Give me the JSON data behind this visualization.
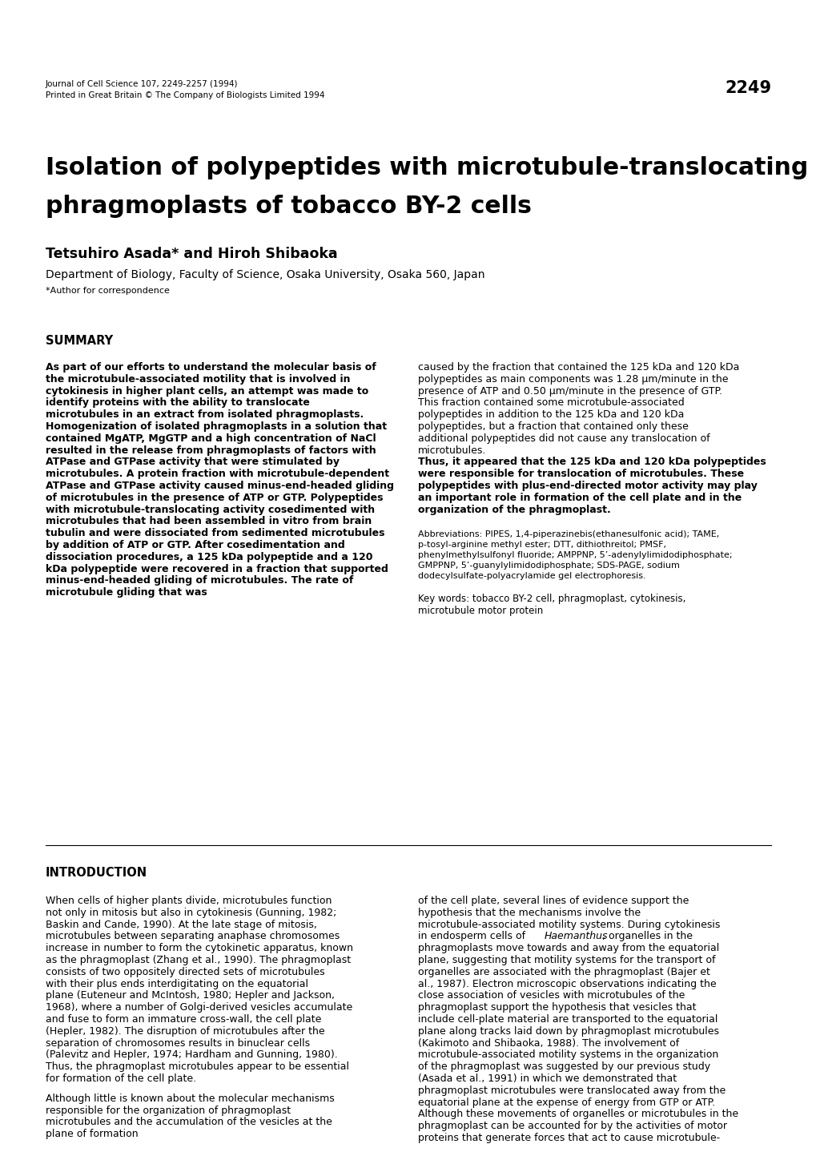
{
  "background_color": "#ffffff",
  "page_number": "2249",
  "journal_line1": "Journal of Cell Science 107, 2249-2257 (1994)",
  "journal_line2": "Printed in Great Britain © The Company of Biologists Limited 1994",
  "title_line1": "Isolation of polypeptides with microtubule-translocating activity from",
  "title_line2": "phragmoplasts of tobacco BY-2 cells",
  "authors": "Tetsuhiro Asada* and Hiroh Shibaoka",
  "affiliation": "Department of Biology, Faculty of Science, Osaka University, Osaka 560, Japan",
  "correspondence": "*Author for correspondence",
  "section_summary": "SUMMARY",
  "summary_left_all": "As part of our efforts to understand the molecular basis of the microtubule-associated motility that is involved in cytokinesis in higher plant cells, an attempt was made to identify proteins with the ability to translocate microtubules in an extract from isolated phragmoplasts. Homogenization of isolated phragmoplasts in a solution that contained MgATP, MgGTP and a high concentration of NaCl resulted in the release from phragmoplasts of factors with ATPase and GTPase activity that were stimulated by microtubules. A protein fraction with microtubule-dependent ATPase and GTPase activity caused minus-end-headed gliding of microtubules in the presence of ATP or GTP. Polypeptides with microtubule-translocating activity cosedimented with microtubules that had been assembled in vitro from brain tubulin and were dissociated from sedimented microtubules by addition of ATP or GTP. After cosedimentation and dissociation procedures, a 125 kDa polypeptide and a 120 kDa polypeptide were recovered in a fraction that supported minus-end-headed gliding of microtubules. The rate of microtubule gliding that was",
  "summary_right_regular": "caused by the fraction that contained the 125 kDa and 120 kDa polypeptides as main components was 1.28 μm/minute in the presence of ATP and 0.50 μm/minute in the presence of GTP. This fraction contained some microtubule-associated polypeptides in addition to the 125 kDa and 120 kDa polypeptides, but a fraction that contained only these additional polypeptides did not cause any translocation of microtubules.",
  "summary_right_bold": "Thus, it appeared that the 125 kDa and 120 kDa polypeptides were responsible for translocation of microtubules. These polypeptides with plus-end-directed motor activity may play an important role in formation of the cell plate and in the organization of the phragmoplast.",
  "abbreviations": "Abbreviations: PIPES, 1,4-piperazinebis(ethanesulfonic acid); TAME, p-tosyl-arginine methyl ester; DTT, dithiothreitol; PMSF, phenylmethylsulfonyl fluoride; AMPPNP, 5’-adenylylimidodiphosphate; GMPPNP, 5’-guanylylimidodiphosphate; SDS-PAGE, sodium dodecylsulfate-polyacrylamide gel electrophoresis.",
  "keywords_line1": "Key words: tobacco BY-2 cell, phragmoplast, cytokinesis,",
  "keywords_line2": "microtubule motor protein",
  "section_introduction": "INTRODUCTION",
  "intro_left_para1": "When cells of higher plants divide, microtubules function not only in mitosis but also in cytokinesis (Gunning, 1982; Baskin and Cande, 1990). At the late stage of mitosis, microtubules between separating anaphase chromosomes increase in number to form the cytokinetic apparatus, known as the phragmoplast (Zhang et al., 1990). The phragmoplast consists of two oppositely directed sets of microtubules with their plus ends interdigitating on the equatorial plane (Euteneur and McIntosh, 1980; Hepler and Jackson, 1968), where a number of Golgi-derived vesicles accumulate and fuse to form an immature cross-wall, the cell plate (Hepler, 1982). The disruption of microtubules after the separation of chromosomes results in binuclear cells (Palevitz and Hepler, 1974; Hardham and Gunning, 1980). Thus, the phragmoplast microtubules appear to be essential for formation of the cell plate.",
  "intro_left_para2": "Although little is known about the molecular mechanisms responsible for the organization of phragmoplast microtubules and the accumulation of the vesicles at the plane of formation",
  "intro_right": "of the cell plate, several lines of evidence support the hypothesis that the mechanisms involve the microtubule-associated motility systems. During cytokinesis in endosperm cells of Haemanthus, organelles in the phragmoplasts move towards and away from the equatorial plane, suggesting that motility systems for the transport of organelles are associated with the phragmoplast (Bajer et al., 1987). Electron microscopic observations indicating the close association of vesicles with microtubules of the phragmoplast support the hypothesis that vesicles that include cell-plate material are transported to the equatorial plane along tracks laid down by phragmoplast microtubules (Kakimoto and Shibaoka, 1988). The involvement of microtubule-associated motility systems in the organization of the phragmoplast was suggested by our previous study (Asada et al., 1991) in which we demonstrated that phragmoplast microtubules were translocated away from the equatorial plane at the expense of energy from GTP or ATP. Although these movements of organelles or microtubules in the phragmoplast can be accounted for by the activities of motor proteins that generate forces that act to cause microtubule-"
}
